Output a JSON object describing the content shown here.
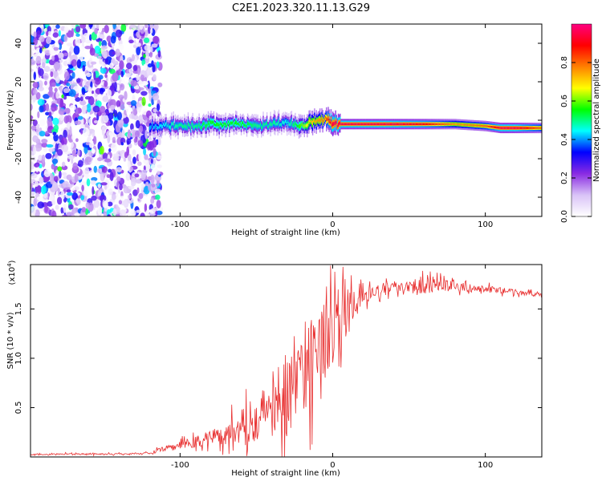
{
  "figure_title": "C2E1.2023.320.11.13.G29",
  "colors": {
    "snr_line": "#e83030",
    "axis": "#000000"
  },
  "chart_data": [
    {
      "type": "heatmap",
      "title": "",
      "xlabel": "Height of straight line (km)",
      "ylabel": "Frequency (Hz)",
      "xlim": [
        -198,
        137
      ],
      "ylim": [
        -50,
        50
      ],
      "x_ticks": [
        -100,
        0,
        100
      ],
      "y_ticks": [
        -40,
        -20,
        0,
        20,
        40
      ],
      "colorbar": {
        "label": "Normalized spectral amplitude",
        "range": [
          0,
          1
        ],
        "ticks": [
          0.0,
          0.2,
          0.4,
          0.6,
          0.8
        ],
        "colormap": [
          "#ffffff",
          "#d9c3f7",
          "#8a2be2",
          "#0000ff",
          "#00ffff",
          "#00ff00",
          "#ffff00",
          "#ff8000",
          "#ff0000",
          "#ff0080"
        ]
      },
      "noise_region_x": [
        -198,
        -113
      ],
      "ridge": {
        "x": [
          -120,
          -110,
          -100,
          -90,
          -80,
          -70,
          -60,
          -50,
          -40,
          -30,
          -20,
          -15,
          -10,
          -5,
          0,
          20,
          40,
          60,
          80,
          100,
          110,
          120,
          137
        ],
        "freq": [
          -3,
          -3,
          -3,
          -3,
          -2,
          -2,
          -2,
          -3,
          -2,
          -1,
          -3,
          -1,
          0,
          1,
          -2,
          -2,
          -2,
          -2,
          -2,
          -3,
          -4,
          -4,
          -4
        ],
        "amplitude": [
          0.4,
          0.45,
          0.5,
          0.5,
          0.55,
          0.55,
          0.55,
          0.5,
          0.5,
          0.45,
          0.6,
          0.7,
          0.75,
          0.8,
          0.95,
          0.95,
          0.95,
          0.9,
          0.75,
          0.8,
          0.95,
          0.95,
          0.8
        ]
      }
    },
    {
      "type": "line",
      "title": "",
      "xlabel": "Height of straight line (km)",
      "ylabel": "SNR (10 * v/v)",
      "y_multiplier": "(x10",
      "y_exponent": "4",
      "xlim": [
        -198,
        137
      ],
      "ylim": [
        0,
        1.95
      ],
      "x_ticks": [
        -100,
        0,
        100
      ],
      "y_ticks": [
        0.5,
        1.0,
        1.5
      ],
      "y_tick_labels": [
        "0.5",
        "1.0",
        "1.5"
      ],
      "series": [
        {
          "x": [
            -198,
            -180,
            -160,
            -140,
            -120,
            -110,
            -100,
            -90,
            -80,
            -70,
            -60,
            -50,
            -40,
            -30,
            -25,
            -20,
            -15,
            -10,
            -5,
            0,
            5,
            10,
            20,
            30,
            40,
            50,
            60,
            70,
            80,
            90,
            100,
            110,
            120,
            130,
            137
          ],
          "y": [
            0.02,
            0.03,
            0.03,
            0.03,
            0.04,
            0.08,
            0.12,
            0.15,
            0.2,
            0.25,
            0.3,
            0.4,
            0.5,
            0.65,
            0.8,
            0.9,
            1.0,
            1.1,
            1.2,
            1.3,
            1.4,
            1.5,
            1.62,
            1.68,
            1.72,
            1.74,
            1.75,
            1.74,
            1.73,
            1.71,
            1.7,
            1.69,
            1.67,
            1.65,
            1.64
          ],
          "noise_amplitude": [
            0.01,
            0.01,
            0.01,
            0.01,
            0.01,
            0.04,
            0.05,
            0.08,
            0.1,
            0.15,
            0.2,
            0.3,
            0.4,
            0.5,
            0.55,
            0.6,
            0.65,
            0.55,
            0.5,
            0.45,
            0.35,
            0.25,
            0.1,
            0.08,
            0.06,
            0.08,
            0.12,
            0.08,
            0.06,
            0.05,
            0.05,
            0.04,
            0.03,
            0.03,
            0.03
          ]
        }
      ]
    }
  ]
}
